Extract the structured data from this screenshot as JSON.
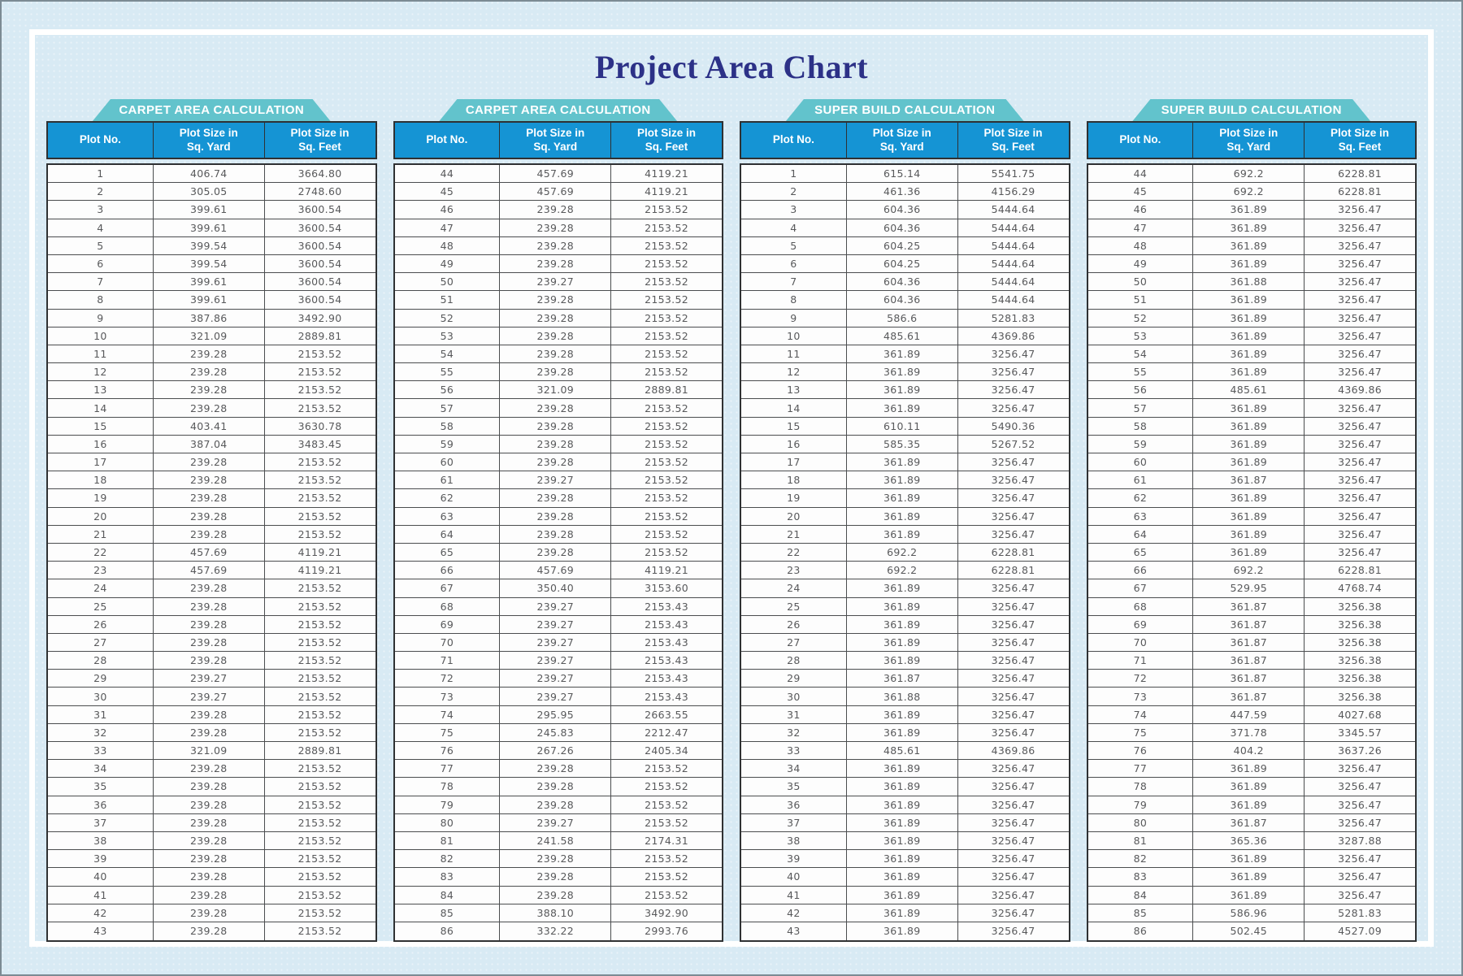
{
  "page": {
    "title": "Project Area Chart"
  },
  "colors": {
    "background": "#d8eaf4",
    "banner_teal": "#62c3cc",
    "header_blue": "#1594d4",
    "title_navy": "#2c3187",
    "row_text": "#58595b",
    "border_dark": "#2f3133"
  },
  "tables": [
    {
      "banner": "CARPET AREA CALCULATION",
      "columns": [
        "Plot No.",
        "Plot Size in\nSq. Yard",
        "Plot Size in\nSq. Feet"
      ],
      "rows": [
        [
          "1",
          "406.74",
          "3664.80"
        ],
        [
          "2",
          "305.05",
          "2748.60"
        ],
        [
          "3",
          "399.61",
          "3600.54"
        ],
        [
          "4",
          "399.61",
          "3600.54"
        ],
        [
          "5",
          "399.54",
          "3600.54"
        ],
        [
          "6",
          "399.54",
          "3600.54"
        ],
        [
          "7",
          "399.61",
          "3600.54"
        ],
        [
          "8",
          "399.61",
          "3600.54"
        ],
        [
          "9",
          "387.86",
          "3492.90"
        ],
        [
          "10",
          "321.09",
          "2889.81"
        ],
        [
          "11",
          "239.28",
          "2153.52"
        ],
        [
          "12",
          "239.28",
          "2153.52"
        ],
        [
          "13",
          "239.28",
          "2153.52"
        ],
        [
          "14",
          "239.28",
          "2153.52"
        ],
        [
          "15",
          "403.41",
          "3630.78"
        ],
        [
          "16",
          "387.04",
          "3483.45"
        ],
        [
          "17",
          "239.28",
          "2153.52"
        ],
        [
          "18",
          "239.28",
          "2153.52"
        ],
        [
          "19",
          "239.28",
          "2153.52"
        ],
        [
          "20",
          "239.28",
          "2153.52"
        ],
        [
          "21",
          "239.28",
          "2153.52"
        ],
        [
          "22",
          "457.69",
          "4119.21"
        ],
        [
          "23",
          "457.69",
          "4119.21"
        ],
        [
          "24",
          "239.28",
          "2153.52"
        ],
        [
          "25",
          "239.28",
          "2153.52"
        ],
        [
          "26",
          "239.28",
          "2153.52"
        ],
        [
          "27",
          "239.28",
          "2153.52"
        ],
        [
          "28",
          "239.28",
          "2153.52"
        ],
        [
          "29",
          "239.27",
          "2153.52"
        ],
        [
          "30",
          "239.27",
          "2153.52"
        ],
        [
          "31",
          "239.28",
          "2153.52"
        ],
        [
          "32",
          "239.28",
          "2153.52"
        ],
        [
          "33",
          "321.09",
          "2889.81"
        ],
        [
          "34",
          "239.28",
          "2153.52"
        ],
        [
          "35",
          "239.28",
          "2153.52"
        ],
        [
          "36",
          "239.28",
          "2153.52"
        ],
        [
          "37",
          "239.28",
          "2153.52"
        ],
        [
          "38",
          "239.28",
          "2153.52"
        ],
        [
          "39",
          "239.28",
          "2153.52"
        ],
        [
          "40",
          "239.28",
          "2153.52"
        ],
        [
          "41",
          "239.28",
          "2153.52"
        ],
        [
          "42",
          "239.28",
          "2153.52"
        ],
        [
          "43",
          "239.28",
          "2153.52"
        ]
      ]
    },
    {
      "banner": "CARPET AREA CALCULATION",
      "columns": [
        "Plot No.",
        "Plot Size in\nSq. Yard",
        "Plot Size in\nSq. Feet"
      ],
      "rows": [
        [
          "44",
          "457.69",
          "4119.21"
        ],
        [
          "45",
          "457.69",
          "4119.21"
        ],
        [
          "46",
          "239.28",
          "2153.52"
        ],
        [
          "47",
          "239.28",
          "2153.52"
        ],
        [
          "48",
          "239.28",
          "2153.52"
        ],
        [
          "49",
          "239.28",
          "2153.52"
        ],
        [
          "50",
          "239.27",
          "2153.52"
        ],
        [
          "51",
          "239.28",
          "2153.52"
        ],
        [
          "52",
          "239.28",
          "2153.52"
        ],
        [
          "53",
          "239.28",
          "2153.52"
        ],
        [
          "54",
          "239.28",
          "2153.52"
        ],
        [
          "55",
          "239.28",
          "2153.52"
        ],
        [
          "56",
          "321.09",
          "2889.81"
        ],
        [
          "57",
          "239.28",
          "2153.52"
        ],
        [
          "58",
          "239.28",
          "2153.52"
        ],
        [
          "59",
          "239.28",
          "2153.52"
        ],
        [
          "60",
          "239.28",
          "2153.52"
        ],
        [
          "61",
          "239.27",
          "2153.52"
        ],
        [
          "62",
          "239.28",
          "2153.52"
        ],
        [
          "63",
          "239.28",
          "2153.52"
        ],
        [
          "64",
          "239.28",
          "2153.52"
        ],
        [
          "65",
          "239.28",
          "2153.52"
        ],
        [
          "66",
          "457.69",
          "4119.21"
        ],
        [
          "67",
          "350.40",
          "3153.60"
        ],
        [
          "68",
          "239.27",
          "2153.43"
        ],
        [
          "69",
          "239.27",
          "2153.43"
        ],
        [
          "70",
          "239.27",
          "2153.43"
        ],
        [
          "71",
          "239.27",
          "2153.43"
        ],
        [
          "72",
          "239.27",
          "2153.43"
        ],
        [
          "73",
          "239.27",
          "2153.43"
        ],
        [
          "74",
          "295.95",
          "2663.55"
        ],
        [
          "75",
          "245.83",
          "2212.47"
        ],
        [
          "76",
          "267.26",
          "2405.34"
        ],
        [
          "77",
          "239.28",
          "2153.52"
        ],
        [
          "78",
          "239.28",
          "2153.52"
        ],
        [
          "79",
          "239.28",
          "2153.52"
        ],
        [
          "80",
          "239.27",
          "2153.52"
        ],
        [
          "81",
          "241.58",
          "2174.31"
        ],
        [
          "82",
          "239.28",
          "2153.52"
        ],
        [
          "83",
          "239.28",
          "2153.52"
        ],
        [
          "84",
          "239.28",
          "2153.52"
        ],
        [
          "85",
          "388.10",
          "3492.90"
        ],
        [
          "86",
          "332.22",
          "2993.76"
        ]
      ]
    },
    {
      "banner": "SUPER BUILD CALCULATION",
      "columns": [
        "Plot No.",
        "Plot Size in\nSq. Yard",
        "Plot Size in\nSq. Feet"
      ],
      "rows": [
        [
          "1",
          "615.14",
          "5541.75"
        ],
        [
          "2",
          "461.36",
          "4156.29"
        ],
        [
          "3",
          "604.36",
          "5444.64"
        ],
        [
          "4",
          "604.36",
          "5444.64"
        ],
        [
          "5",
          "604.25",
          "5444.64"
        ],
        [
          "6",
          "604.25",
          "5444.64"
        ],
        [
          "7",
          "604.36",
          "5444.64"
        ],
        [
          "8",
          "604.36",
          "5444.64"
        ],
        [
          "9",
          "586.6",
          "5281.83"
        ],
        [
          "10",
          "485.61",
          "4369.86"
        ],
        [
          "11",
          "361.89",
          "3256.47"
        ],
        [
          "12",
          "361.89",
          "3256.47"
        ],
        [
          "13",
          "361.89",
          "3256.47"
        ],
        [
          "14",
          "361.89",
          "3256.47"
        ],
        [
          "15",
          "610.11",
          "5490.36"
        ],
        [
          "16",
          "585.35",
          "5267.52"
        ],
        [
          "17",
          "361.89",
          "3256.47"
        ],
        [
          "18",
          "361.89",
          "3256.47"
        ],
        [
          "19",
          "361.89",
          "3256.47"
        ],
        [
          "20",
          "361.89",
          "3256.47"
        ],
        [
          "21",
          "361.89",
          "3256.47"
        ],
        [
          "22",
          "692.2",
          "6228.81"
        ],
        [
          "23",
          "692.2",
          "6228.81"
        ],
        [
          "24",
          "361.89",
          "3256.47"
        ],
        [
          "25",
          "361.89",
          "3256.47"
        ],
        [
          "26",
          "361.89",
          "3256.47"
        ],
        [
          "27",
          "361.89",
          "3256.47"
        ],
        [
          "28",
          "361.89",
          "3256.47"
        ],
        [
          "29",
          "361.87",
          "3256.47"
        ],
        [
          "30",
          "361.88",
          "3256.47"
        ],
        [
          "31",
          "361.89",
          "3256.47"
        ],
        [
          "32",
          "361.89",
          "3256.47"
        ],
        [
          "33",
          "485.61",
          "4369.86"
        ],
        [
          "34",
          "361.89",
          "3256.47"
        ],
        [
          "35",
          "361.89",
          "3256.47"
        ],
        [
          "36",
          "361.89",
          "3256.47"
        ],
        [
          "37",
          "361.89",
          "3256.47"
        ],
        [
          "38",
          "361.89",
          "3256.47"
        ],
        [
          "39",
          "361.89",
          "3256.47"
        ],
        [
          "40",
          "361.89",
          "3256.47"
        ],
        [
          "41",
          "361.89",
          "3256.47"
        ],
        [
          "42",
          "361.89",
          "3256.47"
        ],
        [
          "43",
          "361.89",
          "3256.47"
        ]
      ]
    },
    {
      "banner": "SUPER BUILD CALCULATION",
      "columns": [
        "Plot No.",
        "Plot Size in\nSq. Yard",
        "Plot Size in\nSq. Feet"
      ],
      "rows": [
        [
          "44",
          "692.2",
          "6228.81"
        ],
        [
          "45",
          "692.2",
          "6228.81"
        ],
        [
          "46",
          "361.89",
          "3256.47"
        ],
        [
          "47",
          "361.89",
          "3256.47"
        ],
        [
          "48",
          "361.89",
          "3256.47"
        ],
        [
          "49",
          "361.89",
          "3256.47"
        ],
        [
          "50",
          "361.88",
          "3256.47"
        ],
        [
          "51",
          "361.89",
          "3256.47"
        ],
        [
          "52",
          "361.89",
          "3256.47"
        ],
        [
          "53",
          "361.89",
          "3256.47"
        ],
        [
          "54",
          "361.89",
          "3256.47"
        ],
        [
          "55",
          "361.89",
          "3256.47"
        ],
        [
          "56",
          "485.61",
          "4369.86"
        ],
        [
          "57",
          "361.89",
          "3256.47"
        ],
        [
          "58",
          "361.89",
          "3256.47"
        ],
        [
          "59",
          "361.89",
          "3256.47"
        ],
        [
          "60",
          "361.89",
          "3256.47"
        ],
        [
          "61",
          "361.87",
          "3256.47"
        ],
        [
          "62",
          "361.89",
          "3256.47"
        ],
        [
          "63",
          "361.89",
          "3256.47"
        ],
        [
          "64",
          "361.89",
          "3256.47"
        ],
        [
          "65",
          "361.89",
          "3256.47"
        ],
        [
          "66",
          "692.2",
          "6228.81"
        ],
        [
          "67",
          "529.95",
          "4768.74"
        ],
        [
          "68",
          "361.87",
          "3256.38"
        ],
        [
          "69",
          "361.87",
          "3256.38"
        ],
        [
          "70",
          "361.87",
          "3256.38"
        ],
        [
          "71",
          "361.87",
          "3256.38"
        ],
        [
          "72",
          "361.87",
          "3256.38"
        ],
        [
          "73",
          "361.87",
          "3256.38"
        ],
        [
          "74",
          "447.59",
          "4027.68"
        ],
        [
          "75",
          "371.78",
          "3345.57"
        ],
        [
          "76",
          "404.2",
          "3637.26"
        ],
        [
          "77",
          "361.89",
          "3256.47"
        ],
        [
          "78",
          "361.89",
          "3256.47"
        ],
        [
          "79",
          "361.89",
          "3256.47"
        ],
        [
          "80",
          "361.87",
          "3256.47"
        ],
        [
          "81",
          "365.36",
          "3287.88"
        ],
        [
          "82",
          "361.89",
          "3256.47"
        ],
        [
          "83",
          "361.89",
          "3256.47"
        ],
        [
          "84",
          "361.89",
          "3256.47"
        ],
        [
          "85",
          "586.96",
          "5281.83"
        ],
        [
          "86",
          "502.45",
          "4527.09"
        ]
      ]
    }
  ]
}
